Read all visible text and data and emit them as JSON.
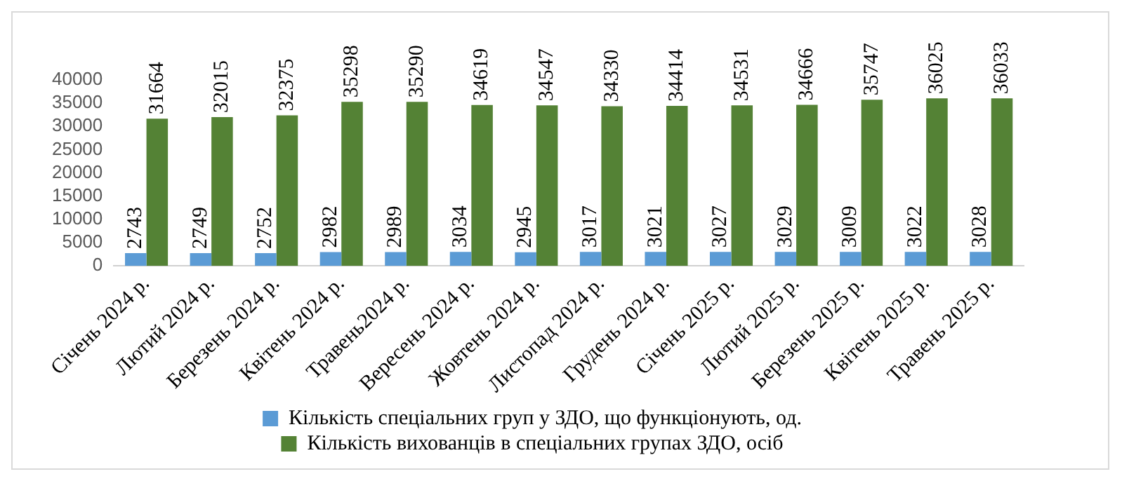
{
  "chart_data": {
    "type": "bar",
    "categories": [
      "Січень 2024 р.",
      "Лютий 2024 р.",
      "Березень 2024 р.",
      "Квітень 2024 р.",
      "Травень2024 р.",
      "Вересень 2024 р.",
      "Жовтень 2024 р.",
      "Листопад 2024 р.",
      "Грудень 2024 р.",
      "Січень 2025 р.",
      "Лютий 2025 р.",
      "Березень 2025 р.",
      "Квітень 2025 р.",
      "Травень 2025 р."
    ],
    "series": [
      {
        "name": "Кількість спеціальних груп у ЗДО, що функціонують, од.",
        "color": "#5b9bd5",
        "values": [
          2743,
          2749,
          2752,
          2982,
          2989,
          3034,
          2945,
          3017,
          3021,
          3027,
          3029,
          3009,
          3022,
          3028
        ]
      },
      {
        "name": "Кількість вихованців в спеціальних групах ЗДО, осіб",
        "color": "#548235",
        "values": [
          31664,
          32015,
          32375,
          35298,
          35290,
          34619,
          34547,
          34330,
          34414,
          34531,
          34666,
          35747,
          36025,
          36033
        ]
      }
    ],
    "ylim": [
      0,
      40000
    ],
    "yticks": [
      0,
      5000,
      10000,
      15000,
      20000,
      25000,
      30000,
      35000,
      40000
    ],
    "grid": false,
    "legend": "bottom",
    "data_labels": true
  }
}
